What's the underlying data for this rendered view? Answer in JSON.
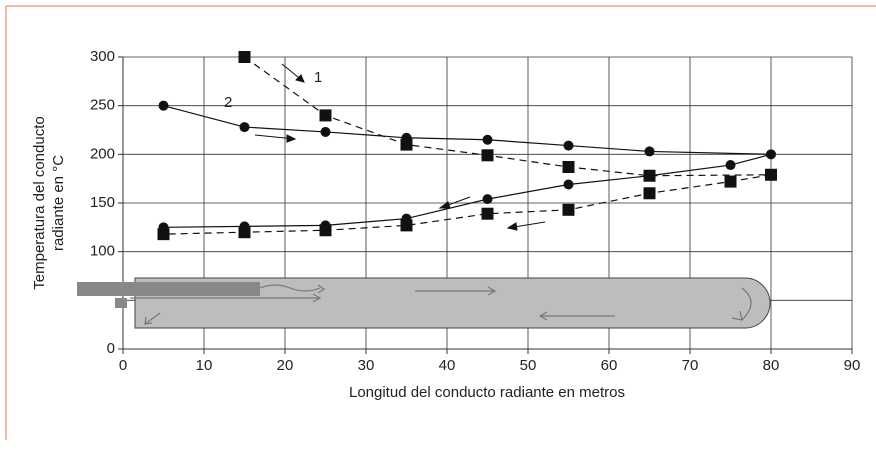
{
  "chart_data": {
    "type": "line",
    "xlabel": "Longitud del conducto radiante en metros",
    "ylabel": [
      "Temperatura del conducto",
      "radiante en °C"
    ],
    "xlim": [
      0,
      90
    ],
    "xticks": [
      0,
      10,
      20,
      30,
      40,
      50,
      60,
      70,
      80,
      90
    ],
    "ylim": [
      0,
      300
    ],
    "yticks": [
      0,
      {
        "value": 50,
        "label": null
      },
      100,
      150,
      200,
      250,
      300
    ],
    "grid": true,
    "annotations": [
      "1",
      "2"
    ],
    "series": [
      {
        "marker": "circle",
        "dash": false,
        "color": "#111",
        "x": [
          5,
          15,
          25,
          35,
          45,
          55,
          65,
          80,
          75,
          65,
          55,
          45,
          35,
          25,
          15,
          5
        ],
        "values": [
          250,
          228,
          223,
          217,
          215,
          209,
          203,
          200,
          189,
          178,
          169,
          154,
          134,
          127,
          126,
          125
        ]
      },
      {
        "marker": "square",
        "dash": true,
        "color": "#111",
        "x": [
          15,
          25,
          35,
          45,
          55,
          65,
          80,
          75,
          65,
          55,
          45,
          35,
          25,
          15,
          5
        ],
        "values": [
          300,
          240,
          210,
          199,
          187,
          178,
          179,
          172,
          160,
          143,
          139,
          127,
          122,
          120,
          118
        ]
      }
    ]
  }
}
